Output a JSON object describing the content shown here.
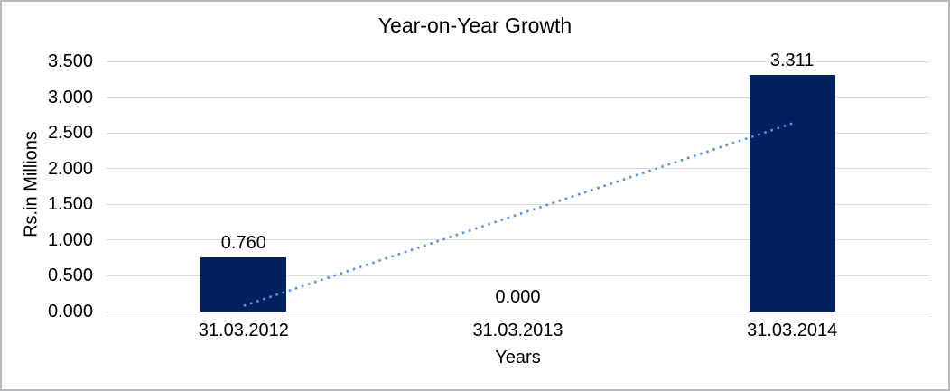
{
  "frame": {
    "background": "#ffffff",
    "border_color": "#b7bbbf"
  },
  "chart_data": {
    "type": "bar",
    "title": "Year-on-Year Growth",
    "xlabel": "Years",
    "ylabel": "Rs.in Millions",
    "categories": [
      "31.03.2012",
      "31.03.2013",
      "31.03.2014"
    ],
    "values": [
      0.76,
      0.0,
      3.311
    ],
    "value_labels": [
      "0.760",
      "0.000",
      "3.311"
    ],
    "ylim": [
      0,
      3.5
    ],
    "ytick_labels": [
      "0.000",
      "0.500",
      "1.000",
      "1.500",
      "2.000",
      "2.500",
      "3.000",
      "3.500"
    ],
    "grid": true,
    "legend": "none",
    "bar_color": "#002060",
    "gridline_color": "#d9d9d9",
    "text_color": "#000000",
    "trendline": {
      "type": "linear",
      "style": "dotted",
      "color": "#5b8fd8",
      "start": {
        "category_index": 0,
        "value": 0.081
      },
      "end": {
        "category_index": 2,
        "value": 2.632
      }
    }
  }
}
